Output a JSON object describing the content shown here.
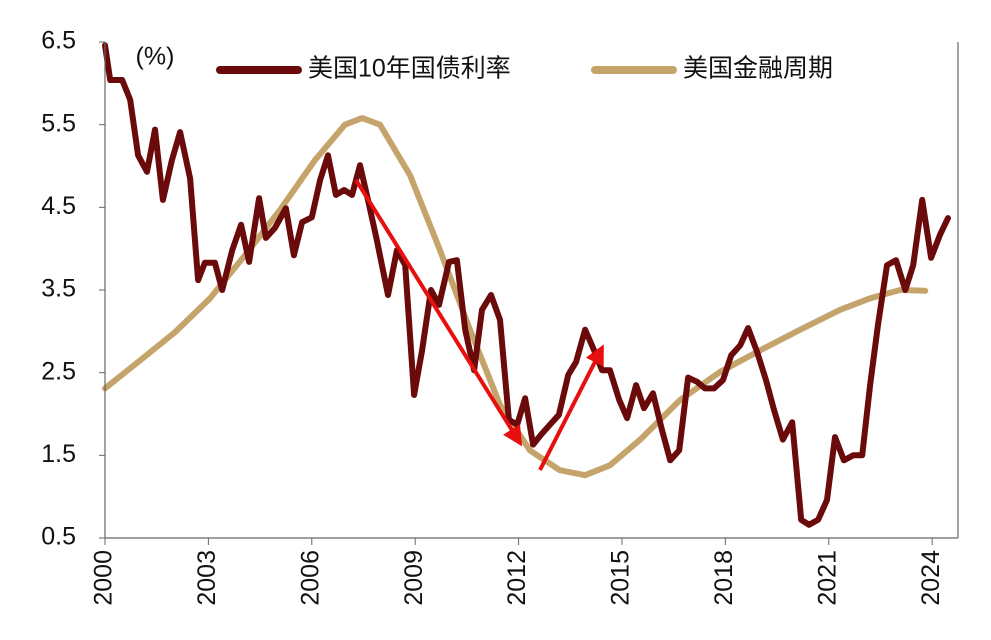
{
  "chart_data": {
    "type": "line",
    "y_label": "(%)",
    "xlim": [
      2000,
      2024.75
    ],
    "xticks": [
      2000,
      2003,
      2006,
      2009,
      2012,
      2015,
      2018,
      2021,
      2024
    ],
    "ylim": [
      0.5,
      6.5
    ],
    "yticks": [
      0.5,
      1.5,
      2.5,
      3.5,
      4.5,
      5.5,
      6.5
    ],
    "series": [
      {
        "name": "美国10年国债利率",
        "color": "#6b0a0a",
        "x": [
          2000.0,
          2000.15,
          2000.5,
          2000.73,
          2000.96,
          2001.22,
          2001.45,
          2001.68,
          2001.94,
          2002.18,
          2002.47,
          2002.7,
          2002.9,
          2003.19,
          2003.4,
          2003.69,
          2003.95,
          2004.18,
          2004.47,
          2004.67,
          2004.93,
          2005.25,
          2005.48,
          2005.72,
          2006.0,
          2006.24,
          2006.47,
          2006.7,
          2006.94,
          2007.17,
          2007.4,
          2007.63,
          2007.89,
          2008.21,
          2008.47,
          2008.71,
          2008.97,
          2009.2,
          2009.46,
          2009.69,
          2009.98,
          2010.21,
          2010.45,
          2010.71,
          2010.94,
          2011.2,
          2011.46,
          2011.72,
          2011.96,
          2012.19,
          2012.42,
          2012.65,
          2012.91,
          2013.17,
          2013.44,
          2013.67,
          2013.93,
          2014.19,
          2014.42,
          2014.65,
          2014.92,
          2015.15,
          2015.41,
          2015.64,
          2015.9,
          2016.16,
          2016.4,
          2016.66,
          2016.92,
          2017.18,
          2017.41,
          2017.67,
          2017.93,
          2018.17,
          2018.43,
          2018.66,
          2018.92,
          2019.18,
          2019.41,
          2019.67,
          2019.94,
          2020.2,
          2020.43,
          2020.69,
          2020.95,
          2021.18,
          2021.44,
          2021.71,
          2021.97,
          2022.2,
          2022.43,
          2022.69,
          2022.95,
          2023.22,
          2023.45,
          2023.71,
          2023.97,
          2024.23,
          2024.46
        ],
        "values": [
          6.46,
          6.04,
          6.04,
          5.8,
          5.13,
          4.93,
          5.44,
          4.59,
          5.07,
          5.41,
          4.85,
          3.62,
          3.83,
          3.83,
          3.5,
          3.98,
          4.29,
          3.84,
          4.61,
          4.13,
          4.25,
          4.49,
          3.92,
          4.32,
          4.38,
          4.83,
          5.13,
          4.65,
          4.71,
          4.65,
          5.01,
          4.59,
          4.1,
          3.44,
          3.98,
          3.8,
          2.23,
          2.77,
          3.5,
          3.32,
          3.84,
          3.86,
          3.02,
          2.53,
          3.26,
          3.44,
          3.14,
          1.93,
          1.87,
          2.19,
          1.63,
          1.75,
          1.87,
          1.99,
          2.47,
          2.63,
          3.02,
          2.77,
          2.53,
          2.53,
          2.17,
          1.95,
          2.35,
          2.07,
          2.25,
          1.81,
          1.44,
          1.56,
          2.44,
          2.39,
          2.31,
          2.31,
          2.41,
          2.71,
          2.83,
          3.04,
          2.75,
          2.41,
          2.05,
          1.69,
          1.9,
          0.72,
          0.66,
          0.72,
          0.96,
          1.72,
          1.44,
          1.5,
          1.5,
          2.35,
          3.08,
          3.8,
          3.86,
          3.5,
          3.8,
          4.59,
          3.89,
          4.17,
          4.37
        ]
      },
      {
        "name": "美国金融周期",
        "color": "#c4a46a",
        "x": [
          2000,
          2001.02,
          2002.03,
          2003.05,
          2004.06,
          2005.08,
          2006.09,
          2006.96,
          2007.46,
          2007.98,
          2008.85,
          2009.72,
          2010.59,
          2011.46,
          2012.33,
          2013.2,
          2013.93,
          2014.65,
          2015.53,
          2016.69,
          2017.85,
          2019.01,
          2020.17,
          2021.33,
          2022.2,
          2023.07,
          2023.8
        ],
        "values": [
          2.31,
          2.65,
          2.99,
          3.4,
          3.92,
          4.47,
          5.07,
          5.5,
          5.58,
          5.5,
          4.89,
          3.98,
          3.02,
          2.11,
          1.56,
          1.32,
          1.26,
          1.38,
          1.69,
          2.17,
          2.51,
          2.77,
          3.02,
          3.26,
          3.4,
          3.5,
          3.49
        ]
      }
    ]
  }
}
